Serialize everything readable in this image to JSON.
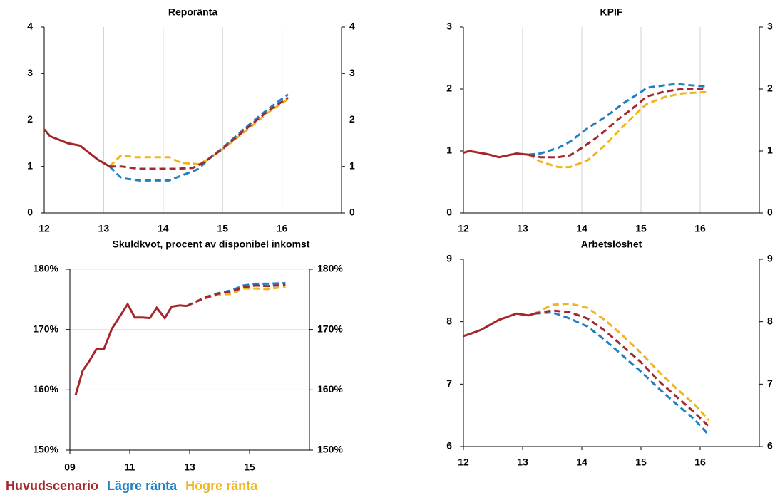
{
  "chart_data": [
    {
      "type": "line",
      "title": "Reporänta",
      "xlim": [
        12,
        17
      ],
      "xticks": [
        12,
        13,
        14,
        15,
        16
      ],
      "ylim": [
        0,
        4
      ],
      "yticks": [
        0,
        1,
        2,
        3,
        4
      ],
      "y2lim": [
        0,
        4
      ],
      "y2ticks": [
        0,
        1,
        2,
        3,
        4
      ],
      "grid": "x",
      "series": [
        {
          "color": "#a4282b",
          "x": [
            12,
            12.1,
            12.4,
            12.6,
            12.9,
            13.1,
            13.3,
            13.6,
            13.9,
            14.2,
            14.5,
            14.7,
            15,
            15.25,
            15.5,
            15.75,
            16.1
          ],
          "values": [
            1.8,
            1.65,
            1.5,
            1.45,
            1.15,
            1.0,
            1.0,
            0.95,
            0.95,
            0.95,
            0.97,
            1.1,
            1.38,
            1.65,
            1.92,
            2.18,
            2.48
          ]
        },
        {
          "color": "#1f7fc1",
          "x": [
            13.1,
            13.3,
            13.6,
            14.1,
            14.3,
            14.6,
            14.75,
            15,
            15.25,
            15.5,
            15.75,
            16.1
          ],
          "values": [
            1.0,
            0.75,
            0.7,
            0.7,
            0.8,
            0.95,
            1.15,
            1.4,
            1.68,
            1.96,
            2.22,
            2.55
          ]
        },
        {
          "color": "#f0b41c",
          "x": [
            13.1,
            13.3,
            13.5,
            14.1,
            14.3,
            14.6,
            14.75,
            15,
            15.25,
            15.5,
            15.75,
            16.1
          ],
          "values": [
            1.0,
            1.25,
            1.2,
            1.2,
            1.08,
            1.05,
            1.15,
            1.37,
            1.62,
            1.88,
            2.15,
            2.45
          ]
        }
      ]
    },
    {
      "type": "line",
      "title": "KPIF",
      "xlim": [
        12,
        17
      ],
      "xticks": [
        12,
        13,
        14,
        15,
        16
      ],
      "ylim": [
        0,
        3
      ],
      "yticks": [
        0,
        1,
        2,
        3
      ],
      "y2lim": [
        0,
        3
      ],
      "y2ticks": [
        0,
        1,
        2,
        3
      ],
      "grid": "x",
      "series": [
        {
          "color": "#a4282b",
          "x": [
            12,
            12.1,
            12.4,
            12.6,
            12.9,
            13.1,
            13.3,
            13.6,
            13.8,
            14,
            14.3,
            14.6,
            14.9,
            15.1,
            15.4,
            15.7,
            16.1
          ],
          "values": [
            0.97,
            1.0,
            0.95,
            0.9,
            0.96,
            0.94,
            0.9,
            0.9,
            0.93,
            1.05,
            1.25,
            1.5,
            1.72,
            1.88,
            1.96,
            2.0,
            2.0
          ]
        },
        {
          "color": "#1f7fc1",
          "x": [
            13.1,
            13.3,
            13.6,
            13.8,
            14.1,
            14.4,
            14.7,
            15,
            15.1,
            15.4,
            15.6,
            16.1
          ],
          "values": [
            0.94,
            0.96,
            1.05,
            1.15,
            1.37,
            1.55,
            1.77,
            1.95,
            2.02,
            2.06,
            2.08,
            2.04
          ]
        },
        {
          "color": "#f0b41c",
          "x": [
            13.1,
            13.3,
            13.6,
            13.8,
            14.1,
            14.4,
            14.7,
            15,
            15.1,
            15.4,
            15.7,
            16.1
          ],
          "values": [
            0.94,
            0.83,
            0.74,
            0.74,
            0.85,
            1.1,
            1.4,
            1.68,
            1.76,
            1.87,
            1.93,
            1.95
          ]
        }
      ]
    },
    {
      "type": "line",
      "title": "Skuldkvot, procent av disponibel inkomst",
      "xlim": [
        9,
        17
      ],
      "xticks": [
        {
          "value": 9,
          "label": "09"
        },
        {
          "value": 11,
          "label": "11"
        },
        {
          "value": 13,
          "label": "13"
        },
        {
          "value": 15,
          "label": "15"
        }
      ],
      "ylim": [
        150,
        180
      ],
      "yticks": [
        {
          "value": 150,
          "label": "150%"
        },
        {
          "value": 160,
          "label": "160%"
        },
        {
          "value": 170,
          "label": "170%"
        },
        {
          "value": 180,
          "label": "180%"
        }
      ],
      "y2lim": [
        150,
        180
      ],
      "y2ticks": [
        {
          "value": 150,
          "label": "150%"
        },
        {
          "value": 160,
          "label": "160%"
        },
        {
          "value": 170,
          "label": "170%"
        },
        {
          "value": 180,
          "label": "180%"
        }
      ],
      "grid": "y",
      "series": [
        {
          "color": "#a4282b",
          "x": [
            9.19,
            9.43,
            9.64,
            9.88,
            10.14,
            10.4,
            10.67,
            10.93,
            11.17,
            11.43,
            11.67,
            11.9,
            12.17,
            12.4,
            12.67,
            12.9,
            13.2,
            13.6,
            14.0,
            14.4,
            14.8,
            15.2,
            15.6,
            16.2
          ],
          "values": [
            159.1,
            163.2,
            164.7,
            166.7,
            166.8,
            170.1,
            172.2,
            174.2,
            172.0,
            172.0,
            171.9,
            173.6,
            171.9,
            173.8,
            174.0,
            173.9,
            174.6,
            175.4,
            176.0,
            176.3,
            177.0,
            177.3,
            177.2,
            177.4
          ]
        },
        {
          "color": "#1f7fc1",
          "x": [
            12.9,
            13.2,
            13.6,
            14.0,
            14.4,
            14.8,
            15.2,
            15.6,
            16.2
          ],
          "values": [
            173.9,
            174.6,
            175.5,
            176.1,
            176.5,
            177.3,
            177.6,
            177.6,
            177.7
          ]
        },
        {
          "color": "#f0b41c",
          "x": [
            12.9,
            13.2,
            13.6,
            14.0,
            14.4,
            14.8,
            15.2,
            15.6,
            16.2
          ],
          "values": [
            173.9,
            174.6,
            175.3,
            175.8,
            175.9,
            176.8,
            176.8,
            176.7,
            177.1
          ]
        }
      ]
    },
    {
      "type": "line",
      "title": "Arbetslöshet",
      "xlim": [
        12,
        17
      ],
      "xticks": [
        12,
        13,
        14,
        15,
        16
      ],
      "ylim": [
        6,
        9
      ],
      "yticks": [
        6,
        7,
        8,
        9
      ],
      "y2lim": [
        6,
        9
      ],
      "y2ticks": [
        6,
        7,
        8,
        9
      ],
      "grid": "none",
      "series": [
        {
          "color": "#a4282b",
          "x": [
            12,
            12.1,
            12.3,
            12.6,
            12.9,
            13.1,
            13.2,
            13.5,
            13.8,
            14.1,
            14.4,
            14.7,
            15,
            15.3,
            15.6,
            15.9,
            16.15
          ],
          "values": [
            7.77,
            7.8,
            7.87,
            8.03,
            8.13,
            8.1,
            8.13,
            8.18,
            8.15,
            8.05,
            7.85,
            7.6,
            7.35,
            7.05,
            6.8,
            6.55,
            6.32
          ]
        },
        {
          "color": "#1f7fc1",
          "x": [
            13.2,
            13.5,
            13.8,
            14.1,
            14.4,
            14.7,
            15,
            15.3,
            15.6,
            15.9,
            16.15
          ],
          "values": [
            8.13,
            8.15,
            8.05,
            7.92,
            7.7,
            7.45,
            7.2,
            6.93,
            6.68,
            6.44,
            6.18
          ]
        },
        {
          "color": "#f0b41c",
          "x": [
            13.2,
            13.5,
            13.8,
            14.1,
            14.4,
            14.7,
            15,
            15.3,
            15.6,
            15.9,
            16.15
          ],
          "values": [
            8.13,
            8.27,
            8.29,
            8.22,
            8.02,
            7.77,
            7.5,
            7.2,
            6.93,
            6.68,
            6.42
          ]
        }
      ]
    }
  ],
  "legend": {
    "items": [
      {
        "name": "Huvudscenario",
        "color": "#a4282b"
      },
      {
        "name": "Lägre ränta",
        "color": "#1f7fc1"
      },
      {
        "name": "Högre ränta",
        "color": "#f0b41c"
      }
    ]
  }
}
